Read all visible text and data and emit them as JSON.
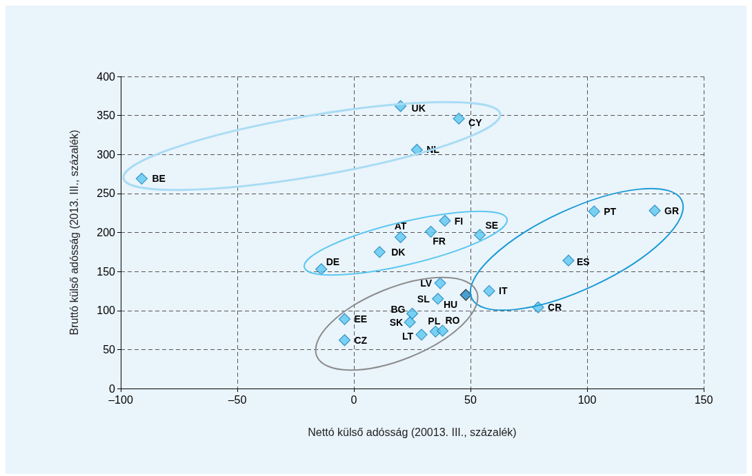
{
  "chart_data": {
    "type": "scatter",
    "xlabel": "Nettó külső adósság (20013. III., százalék)",
    "ylabel": "Bruttó külső adósság (2013. III., százalék)",
    "x": [
      -91,
      20,
      45,
      27,
      103,
      129,
      39,
      20,
      33,
      54,
      11,
      -14,
      92,
      37,
      58,
      48,
      36,
      79,
      25,
      -4,
      24,
      35,
      38,
      29,
      -4
    ],
    "values": [
      269,
      362,
      346,
      306,
      227,
      228,
      215,
      194,
      201,
      197,
      175,
      153,
      164,
      135,
      125,
      120,
      115,
      104,
      96,
      89,
      85,
      73,
      74,
      69,
      62
    ],
    "colors": [
      "#5bc8f0",
      "#5bc8f0",
      "#5bc8f0",
      "#5bc8f0",
      "#5bc8f0",
      "#5bc8f0",
      "#5bc8f0",
      "#5bc8f0",
      "#5bc8f0",
      "#5bc8f0",
      "#5bc8f0",
      "#5bc8f0",
      "#5bc8f0",
      "#5bc8f0",
      "#5bc8f0",
      "#1e8bc3",
      "#5bc8f0",
      "#5bc8f0",
      "#5bc8f0",
      "#5bc8f0",
      "#5bc8f0",
      "#5bc8f0",
      "#5bc8f0",
      "#5bc8f0",
      "#5bc8f0"
    ],
    "annotations": [
      {
        "text": "BE",
        "x": -91,
        "y": 269
      },
      {
        "text": "UK",
        "x": 20,
        "y": 362
      },
      {
        "text": "CY",
        "x": 45,
        "y": 346
      },
      {
        "text": "NL",
        "x": 27,
        "y": 306
      },
      {
        "text": "PT",
        "x": 103,
        "y": 227
      },
      {
        "text": "GR",
        "x": 129,
        "y": 228
      },
      {
        "text": "FI",
        "x": 39,
        "y": 215
      },
      {
        "text": "AT",
        "x": 20,
        "y": 194
      },
      {
        "text": "FR",
        "x": 33,
        "y": 201
      },
      {
        "text": "SE",
        "x": 54,
        "y": 197
      },
      {
        "text": "DK",
        "x": 11,
        "y": 175
      },
      {
        "text": "DE",
        "x": -14,
        "y": 153
      },
      {
        "text": "ES",
        "x": 92,
        "y": 164
      },
      {
        "text": "LV",
        "x": 37,
        "y": 135
      },
      {
        "text": "IT",
        "x": 58,
        "y": 125
      },
      {
        "text": "HU",
        "x": 48,
        "y": 120
      },
      {
        "text": "SL",
        "x": 36,
        "y": 115
      },
      {
        "text": "CR",
        "x": 79,
        "y": 104
      },
      {
        "text": "BG",
        "x": 25,
        "y": 96
      },
      {
        "text": "EE",
        "x": -4,
        "y": 89
      },
      {
        "text": "SK",
        "x": 24,
        "y": 85
      },
      {
        "text": "PL",
        "x": 35,
        "y": 73
      },
      {
        "text": "RO",
        "x": 38,
        "y": 74
      },
      {
        "text": "LT",
        "x": 29,
        "y": 69
      },
      {
        "text": "CZ",
        "x": -4,
        "y": 62
      }
    ],
    "marker": "diamond",
    "xlim": [
      -100,
      150
    ],
    "xticks": [
      {
        "value": -100,
        "label": "–100"
      },
      {
        "value": -50,
        "label": "–50"
      },
      0,
      50,
      100,
      150
    ],
    "ylim": [
      0,
      400
    ],
    "yticks": [
      0,
      50,
      100,
      150,
      200,
      250,
      300,
      350,
      400
    ],
    "grid": true
  }
}
